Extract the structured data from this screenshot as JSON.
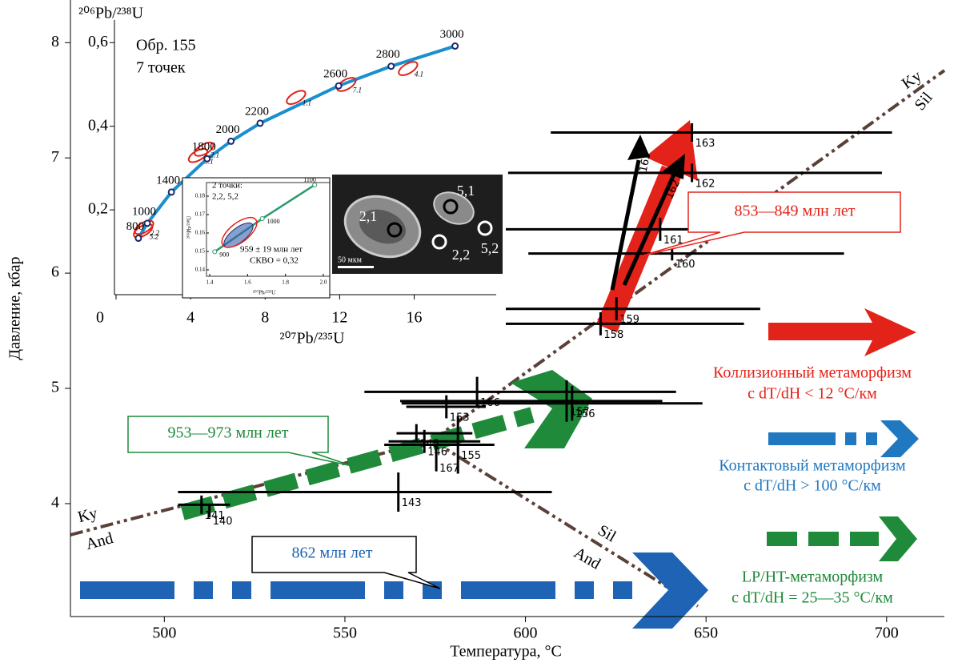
{
  "chart_data": {
    "type": "errorbar",
    "x_label": "Температура, °C",
    "y_label": "Давление, кбар",
    "xlim": [
      474,
      716
    ],
    "xticks": [
      500,
      550,
      600,
      650,
      700
    ],
    "ylim": [
      3.02,
      8.37
    ],
    "yticks": [
      4,
      5,
      6,
      7,
      8
    ],
    "color": "#000000",
    "points": [
      {
        "label": "163",
        "t": 646.1,
        "p": 7.22,
        "t_min": 607.0,
        "t_max": 701.5,
        "p_err": 0.08
      },
      {
        "label": "162",
        "t": 646.1,
        "p": 6.87,
        "t_min": 595.2,
        "t_max": 698.7,
        "p_err": 0.08
      },
      {
        "label": "161",
        "t": 637.3,
        "p": 6.38,
        "t_min": 593.7,
        "t_max": 690.4,
        "p_err": 0.1
      },
      {
        "label": "160",
        "t": 640.6,
        "p": 6.17,
        "t_min": 600.8,
        "t_max": 688.2,
        "p_err": 0.06
      },
      {
        "label": "159",
        "t": 625.2,
        "p": 5.69,
        "t_min": 591.5,
        "t_max": 665.0,
        "p_err": 0.1
      },
      {
        "label": "158",
        "t": 620.8,
        "p": 5.56,
        "t_min": 585.8,
        "t_max": 660.5,
        "p_err": 0.1
      },
      {
        "label": "166",
        "t": 586.6,
        "p": 4.97,
        "t_min": 555.4,
        "t_max": 641.7,
        "p_err": 0.13
      },
      {
        "label": "157",
        "t": 611.4,
        "p": 4.89,
        "t_min": 565.3,
        "t_max": 637.9,
        "p_err": 0.18
      },
      {
        "label": "156",
        "t": 612.9,
        "p": 4.87,
        "t_min": 565.7,
        "t_max": 649.0,
        "p_err": 0.15
      },
      {
        "label": "153",
        "t": 578.1,
        "p": 4.84,
        "t_min": 567.0,
        "t_max": 589.0,
        "p_err": 0.1
      },
      {
        "label": "145",
        "t": 569.8,
        "p": 4.61,
        "t_min": 564.3,
        "t_max": 585.3,
        "p_err": 0.08
      },
      {
        "label": "146",
        "t": 572.0,
        "p": 4.54,
        "t_min": 562.1,
        "t_max": 587.5,
        "p_err": 0.1
      },
      {
        "label": "155",
        "t": 581.3,
        "p": 4.51,
        "t_min": 560.9,
        "t_max": 591.4,
        "p_err": 0.25
      },
      {
        "label": "167",
        "t": 575.3,
        "p": 4.4,
        "p_err": 0.12
      },
      {
        "label": "143",
        "t": 564.8,
        "p": 4.1,
        "t_min": 503.8,
        "t_max": 607.3,
        "p_err": 0.17
      },
      {
        "label": "141",
        "t": 510.3,
        "p": 3.99,
        "t_min": 503.8,
        "t_max": 518.2,
        "p_err": 0.08
      },
      {
        "label": "140",
        "t": 512.5,
        "p": 3.94,
        "p_err": 0.06
      }
    ],
    "line_labels": [
      "Ky",
      "And",
      "Sil",
      "And",
      "Ky",
      "Sil"
    ],
    "arrow_labels": [
      "163",
      "162"
    ],
    "callouts": [
      "853—849 млн лет",
      "953—973 млн лет",
      "862 млн лет"
    ],
    "legend": [
      {
        "name": "Коллизионный метаморфизм",
        "condition": "с dT/dH < 12 °C/км",
        "color": "#e32219"
      },
      {
        "name": "Контактовый метаморфизм",
        "condition": "с dT/dH > 100 °C/км",
        "color": "#1f78c0"
      },
      {
        "name": "LP/HT-метаморфизм",
        "condition": "с dT/dH = 25—35 °C/км",
        "color": "#1e8a3a"
      }
    ]
  },
  "inset": {
    "type": "line",
    "sample": "Обр. 155",
    "count": "7 точек",
    "x_label": "²⁰⁷Pb/²³⁵U",
    "y_label": "²⁰⁶Pb/²³⁸U",
    "xlim": [
      0,
      20.4
    ],
    "xticks": [
      0,
      4,
      8,
      12,
      16
    ],
    "ylim": [
      0,
      0.657
    ],
    "yticks": [
      {
        "value": 0.2,
        "label": "0,2"
      },
      {
        "value": 0.4,
        "label": "0,4"
      },
      {
        "value": 0.6,
        "label": "0,6"
      }
    ],
    "color": "#1a8fd0",
    "ages": [
      800,
      1000,
      1400,
      1800,
      2000,
      2200,
      2600,
      2800,
      3000
    ],
    "x": [
      1.199,
      1.677,
      2.97,
      4.886,
      6.168,
      7.73,
      11.945,
      14.762,
      18.193
    ],
    "y": [
      0.1321,
      0.1678,
      0.2425,
      0.3223,
      0.3641,
      0.4072,
      0.4967,
      0.5436,
      0.5918
    ],
    "spots": [
      {
        "label": "2.2",
        "x": 1.5,
        "y": 0.158
      },
      {
        "label": "5.2",
        "x": 1.45,
        "y": 0.15
      },
      {
        "label": "2.1",
        "x": 4.72,
        "y": 0.345
      },
      {
        "label": "5.1",
        "x": 4.4,
        "y": 0.33
      },
      {
        "label": "1.1",
        "x": 9.66,
        "y": 0.469
      },
      {
        "label": "7.1",
        "x": 12.36,
        "y": 0.5
      },
      {
        "label": "4.1",
        "x": 15.67,
        "y": 0.538
      }
    ]
  },
  "zoom": {
    "note": "2 точки:",
    "spots": "2,2, 5,2",
    "age": "959 ± 19 млн лет",
    "mswd": "СКВО = 0,32",
    "x_label": "²⁰⁷Pb/²³⁵U",
    "y_label": "²⁰⁶Pb/²³⁸U",
    "xlim": [
      1.383,
      2.034
    ],
    "xticks": [
      1.4,
      1.6,
      1.8,
      {
        "value": 2.0,
        "label": "2.0"
      }
    ],
    "ylim": [
      0.1365,
      0.1874
    ],
    "yticks": [
      0.14,
      0.15,
      0.16,
      0.17,
      0.18
    ],
    "ages": [
      900,
      1000,
      1100
    ],
    "x": [
      1.4263,
      1.6774,
      1.9545
    ],
    "y": [
      0.1498,
      0.1678,
      0.1861
    ]
  },
  "photo": {
    "labels": [
      "2,1",
      "5,1",
      "2,2",
      "5,2"
    ],
    "scale": "50 мкм"
  }
}
